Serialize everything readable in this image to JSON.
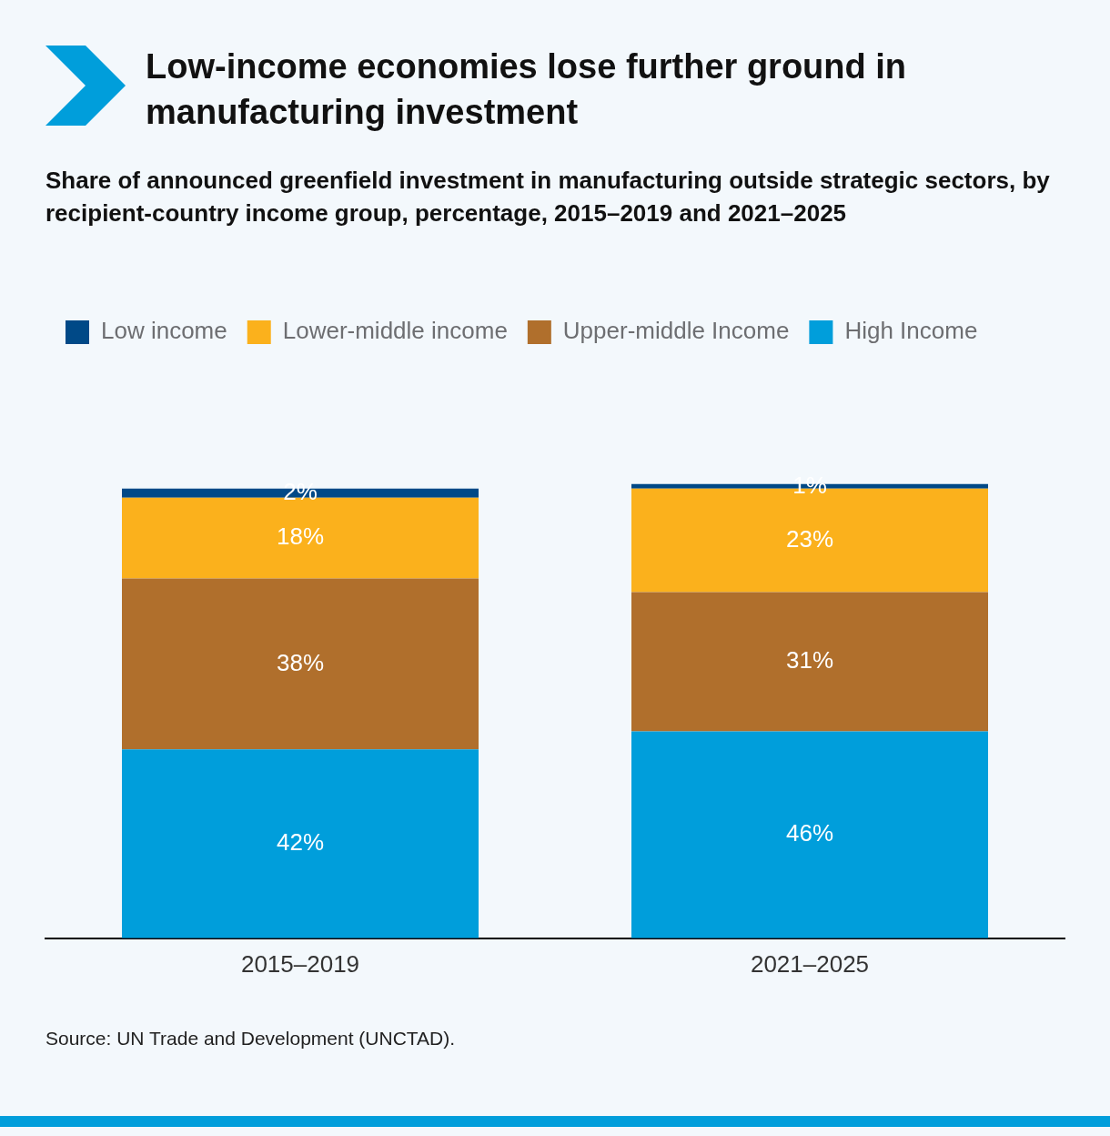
{
  "chart_data": {
    "type": "bar",
    "title": "Low-income economies lose further ground in manufacturing investment",
    "subtitle": "Share of announced greenfield investment in manufacturing outside strategic sectors, by recipient-country income group, percentage, 2015–2019 and 2021–2025",
    "categories": [
      "2015–2019",
      "2021–2025"
    ],
    "stacked": true,
    "legend": "top left",
    "grid": false,
    "series": [
      {
        "name": "High Income",
        "color": "#009edb",
        "values": [
          42,
          46
        ],
        "value_labels": [
          "42%",
          "46%"
        ]
      },
      {
        "name": "Upper-middle Income",
        "color": "#b06f2c",
        "values": [
          38,
          31
        ],
        "value_labels": [
          "38%",
          "31%"
        ]
      },
      {
        "name": "Lower-middle income",
        "color": "#fbb11c",
        "values": [
          18,
          23
        ],
        "value_labels": [
          "18%",
          "23%"
        ]
      },
      {
        "name": "Low income",
        "color": "#004987",
        "values": [
          2,
          1
        ],
        "value_labels": [
          "2%",
          "1%"
        ]
      }
    ],
    "annotations": [
      "Source: UN Trade and Development (UNCTAD)."
    ]
  }
}
